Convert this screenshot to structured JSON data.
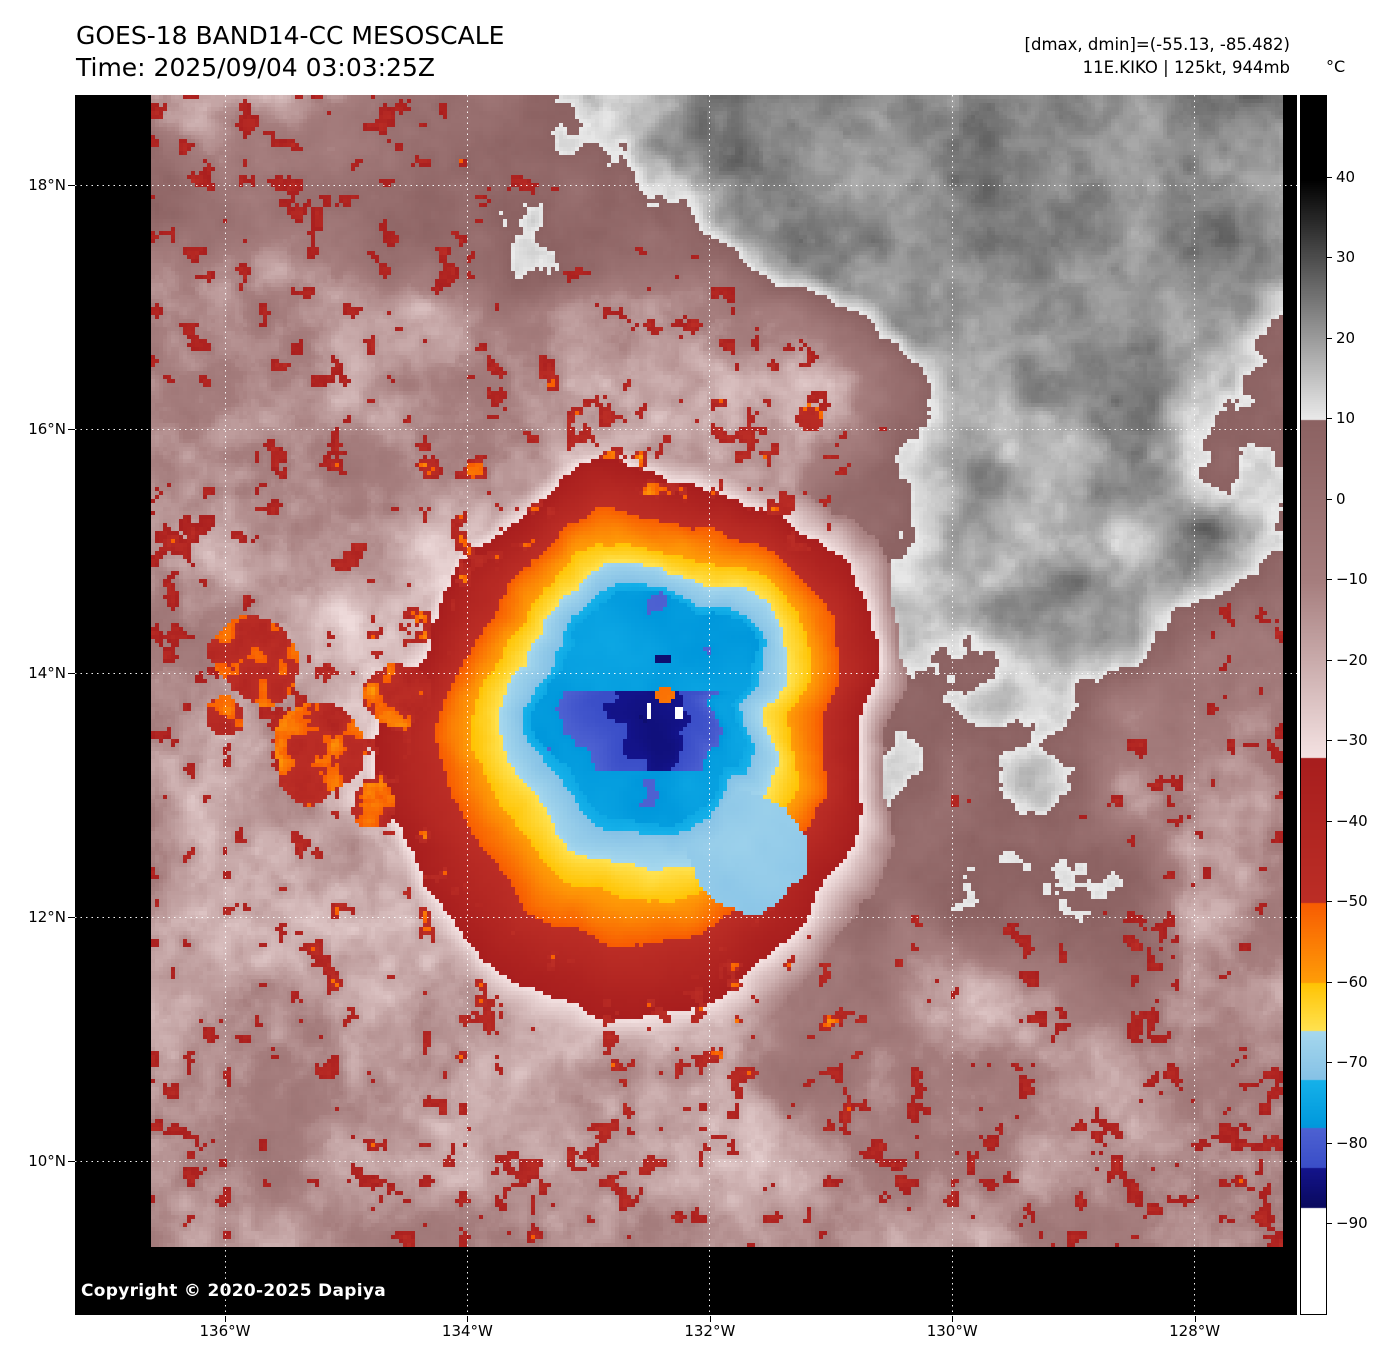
{
  "header": {
    "title": "GOES-18 BAND14-CC MESOSCALE",
    "time": "Time: 2025/09/04 03:03:25Z",
    "range_line": "[dmax, dmin]=(-55.13, -85.482)",
    "storm_line": "11E.KIKO | 125kt, 944mb"
  },
  "storm": {
    "designation": "11E.KIKO",
    "max_wind": "125kt",
    "min_pressure": "944mb",
    "dmax_c": -55.13,
    "dmin_c": -85.482
  },
  "axes": {
    "lat_labels": [
      "18°N",
      "16°N",
      "14°N",
      "12°N",
      "10°N"
    ],
    "lon_labels": [
      "136°W",
      "134°W",
      "132°W",
      "130°W",
      "128°W"
    ]
  },
  "colorbar": {
    "unit_label": "°C",
    "tick_values": [
      40,
      30,
      20,
      10,
      0,
      -10,
      -20,
      -30,
      -40,
      -50,
      -60,
      -70,
      -80,
      -90
    ],
    "tick_labels": [
      "40",
      "30",
      "20",
      "10",
      "0",
      "−10",
      "−20",
      "−30",
      "−40",
      "−50",
      "−60",
      "−70",
      "−80",
      "−90"
    ],
    "segments": [
      {
        "from": 50,
        "to": 40,
        "c1": "#000000",
        "c2": "#000000"
      },
      {
        "from": 40,
        "to": 10,
        "c1": "#000000",
        "c2": "#ebebeb"
      },
      {
        "from": 10,
        "to": -10,
        "c1": "#8c6262",
        "c2": "#a67e7e"
      },
      {
        "from": -10,
        "to": -30,
        "c1": "#a67e7e",
        "c2": "#eedada"
      },
      {
        "from": -30,
        "to": -32,
        "c1": "#eedada",
        "c2": "#f4e2e2"
      },
      {
        "from": -32,
        "to": -50,
        "c1": "#a81e1e",
        "c2": "#bc2e26"
      },
      {
        "from": -50,
        "to": -60,
        "c1": "#f85c02",
        "c2": "#ff9e08"
      },
      {
        "from": -60,
        "to": -66,
        "c1": "#ffc404",
        "c2": "#ffe352"
      },
      {
        "from": -66,
        "to": -72,
        "c1": "#a6d8ee",
        "c2": "#86c2e6"
      },
      {
        "from": -72,
        "to": -78,
        "c1": "#16b2ea",
        "c2": "#0098dc"
      },
      {
        "from": -78,
        "to": -83,
        "c1": "#4e62d2",
        "c2": "#3a4ec8"
      },
      {
        "from": -83,
        "to": -88,
        "c1": "#14148c",
        "c2": "#0a0a5e"
      },
      {
        "from": -88,
        "to": -101,
        "c1": "#ffffff",
        "c2": "#ffffff"
      }
    ]
  },
  "map": {
    "copyright": "Copyright © 2020-2025 Dapiya"
  }
}
